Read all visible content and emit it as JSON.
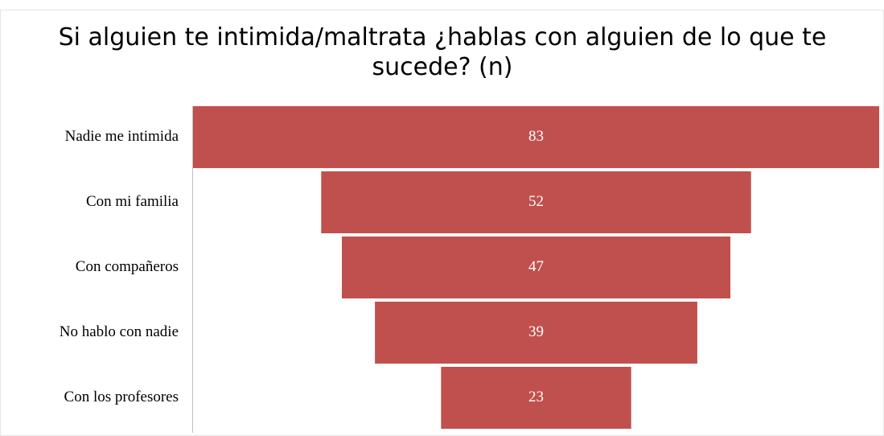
{
  "chart_data": {
    "type": "funnel",
    "title": "Si alguien te intimida/maltrata ¿hablas con alguien de lo que te sucede? (n)",
    "categories": [
      "Nadie me intimida",
      "Con mi familia",
      "Con compañeros",
      "No hablo con nadie",
      "Con los profesores"
    ],
    "values": [
      83,
      52,
      47,
      39,
      23
    ],
    "color": "#c0504d"
  }
}
